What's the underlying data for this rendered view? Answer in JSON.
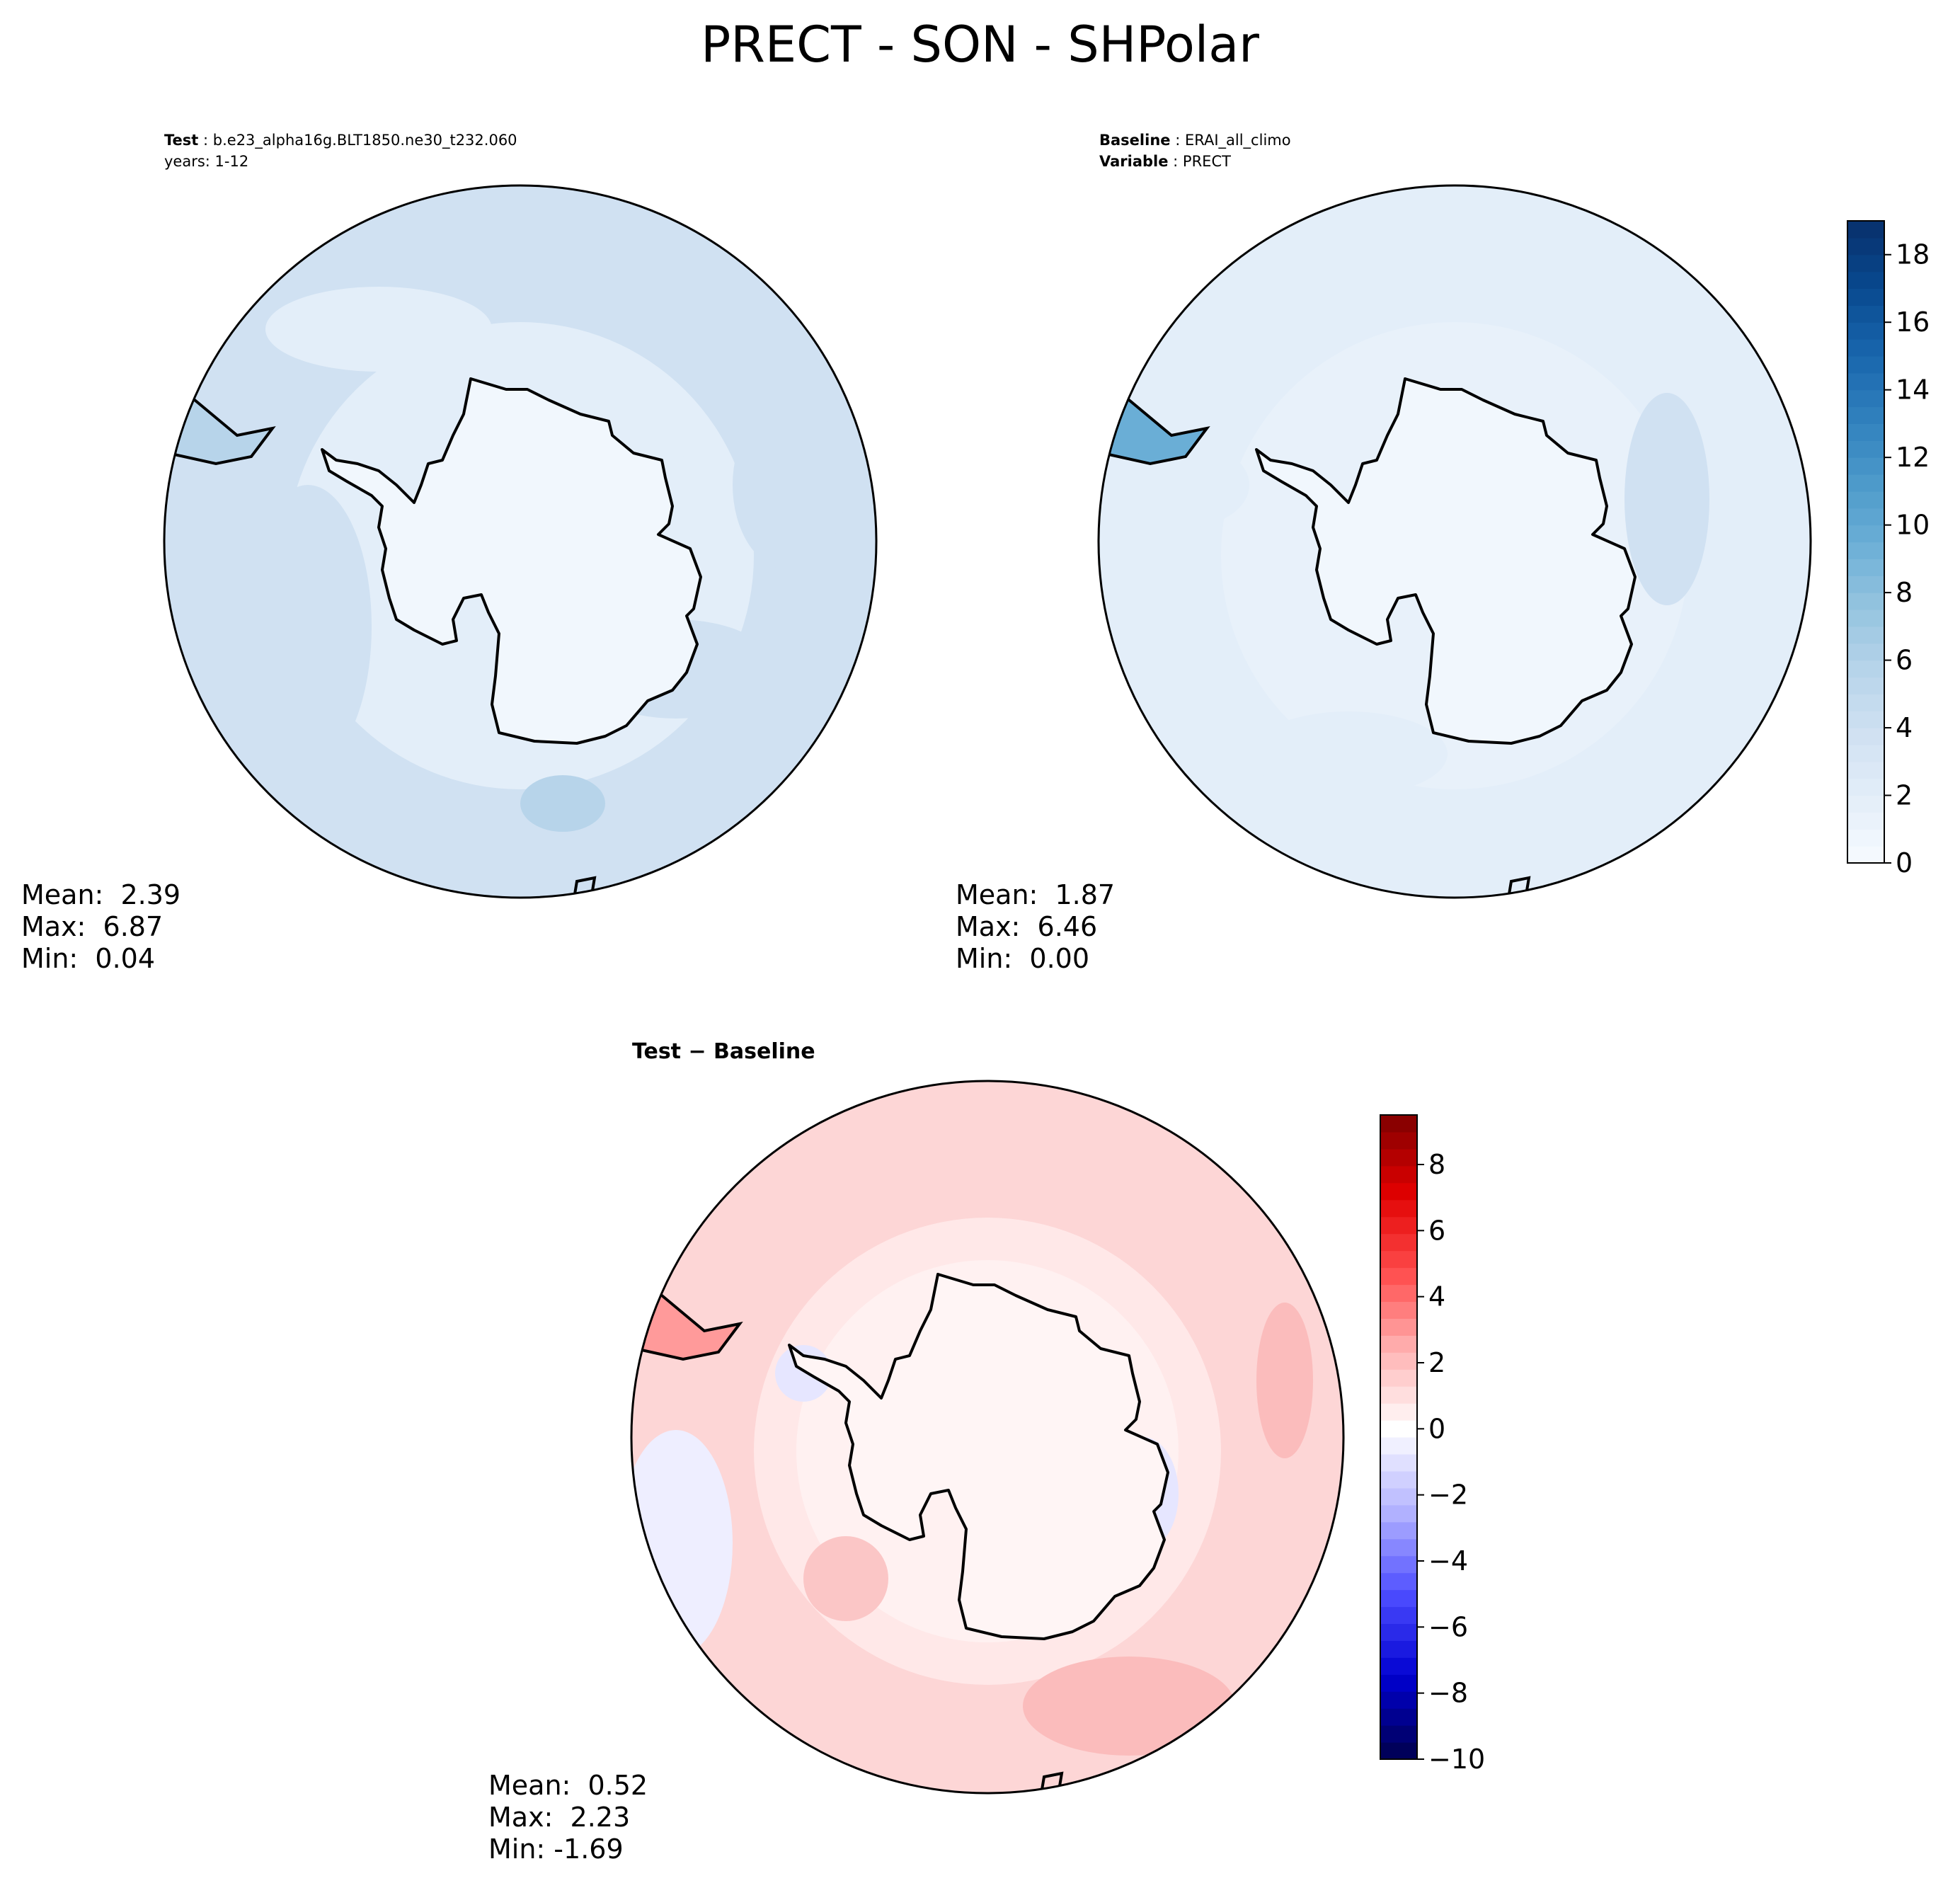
{
  "title": "PRECT - SON - SHPolar",
  "test_panel": {
    "label_key": "Test",
    "label_value": "b.e23_alpha16g.BLT1850.ne30_t232.060",
    "years": "years: 1-12",
    "stats": {
      "mean": "Mean:  2.39",
      "max": "Max:  6.87",
      "min": "Min:  0.04"
    }
  },
  "baseline_panel": {
    "label_key": "Baseline",
    "label_value": "ERAI_all_climo",
    "variable_key": "Variable",
    "variable_value": "PRECT",
    "stats": {
      "mean": "Mean:  1.87",
      "max": "Max:  6.46",
      "min": "Min:  0.00"
    }
  },
  "diff_panel": {
    "title": "Test − Baseline",
    "stats": {
      "mean": "Mean:  0.52",
      "max": "Max:  2.23",
      "min": "Min: -1.69"
    }
  },
  "colors": {
    "blues": [
      "#f7fbff",
      "#e3eef9",
      "#d0e1f2",
      "#b7d4ea",
      "#94c4df",
      "#6aaed6",
      "#4a98c9",
      "#2e7ebc",
      "#1764ab",
      "#08488e",
      "#08306b"
    ],
    "bwr": [
      "#00004c",
      "#0000d0",
      "#4d4dff",
      "#b3b3ff",
      "#ffffff",
      "#ffb3b3",
      "#ff4d4d",
      "#e00000",
      "#800000"
    ],
    "land": "#f1f7fd",
    "outline": "#000000"
  },
  "chart_data": [
    {
      "type": "heatmap",
      "panel": "Test",
      "projection": "south polar stereographic",
      "colorbar": "shared with Baseline",
      "stats": {
        "mean": 2.39,
        "max": 6.87,
        "min": 0.04
      }
    },
    {
      "type": "heatmap",
      "panel": "Baseline",
      "projection": "south polar stereographic",
      "colorbar": {
        "ticks": [
          0,
          2,
          4,
          6,
          8,
          10,
          12,
          14,
          16,
          18
        ],
        "range": [
          0,
          19
        ],
        "cmap": "Blues"
      },
      "stats": {
        "mean": 1.87,
        "max": 6.46,
        "min": 0.0
      }
    },
    {
      "type": "heatmap",
      "panel": "Test − Baseline",
      "projection": "south polar stereographic",
      "colorbar": {
        "ticks": [
          -10,
          -8,
          -6,
          -4,
          -2,
          0,
          2,
          4,
          6,
          8
        ],
        "range": [
          -10,
          9.5
        ],
        "cmap": "bwr"
      },
      "stats": {
        "mean": 0.52,
        "max": 2.23,
        "min": -1.69
      }
    }
  ]
}
